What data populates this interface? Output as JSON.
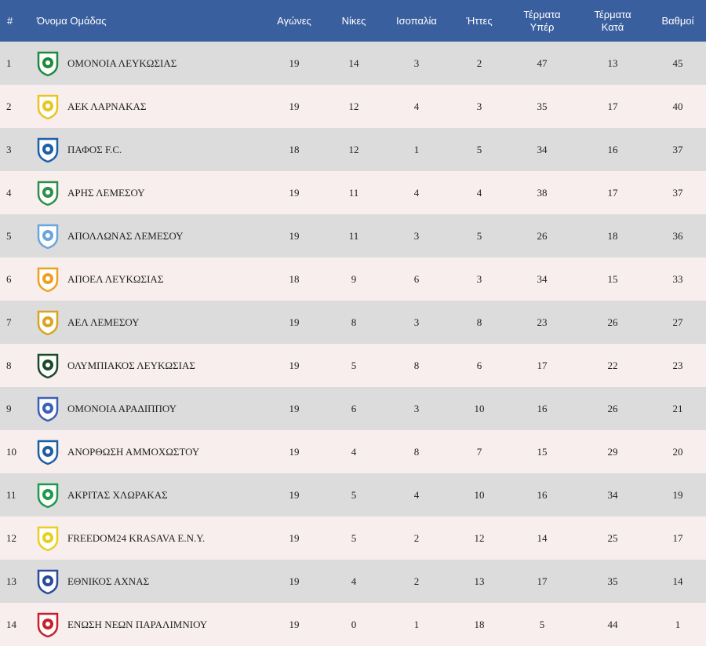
{
  "headers": {
    "rank": "#",
    "team": "Όνομα Ομάδας",
    "played": "Αγώνες",
    "wins": "Νίκες",
    "draws": "Ισοπαλία",
    "losses": "Ήττες",
    "goals_for_1": "Τέρματα",
    "goals_for_2": "Υπέρ",
    "goals_against_1": "Τέρματα",
    "goals_against_2": "Κατά",
    "points": "Βαθμοί"
  },
  "rows": [
    {
      "rank": "1",
      "team": "ΟΜΟΝΟΙΑ ΛΕΥΚΩΣΙΑΣ",
      "logo": "omonoia-logo",
      "color": "#1e8a3c",
      "played": "19",
      "wins": "14",
      "draws": "3",
      "losses": "2",
      "gf": "47",
      "ga": "13",
      "pts": "45"
    },
    {
      "rank": "2",
      "team": "ΑΕΚ ΛΑΡΝΑΚΑΣ",
      "logo": "aek-logo",
      "color": "#e8c520",
      "played": "19",
      "wins": "12",
      "draws": "4",
      "losses": "3",
      "gf": "35",
      "ga": "17",
      "pts": "40"
    },
    {
      "rank": "3",
      "team": "ΠΑΦΟΣ F.C.",
      "logo": "pafos-logo",
      "color": "#1d5fa8",
      "played": "18",
      "wins": "12",
      "draws": "1",
      "losses": "5",
      "gf": "34",
      "ga": "16",
      "pts": "37"
    },
    {
      "rank": "4",
      "team": "ΑΡΗΣ ΛΕΜΕΣΟΥ",
      "logo": "aris-logo",
      "color": "#2f8f4a",
      "played": "19",
      "wins": "11",
      "draws": "4",
      "losses": "4",
      "gf": "38",
      "ga": "17",
      "pts": "37"
    },
    {
      "rank": "5",
      "team": "ΑΠΟΛΛΩΝΑΣ ΛΕΜΕΣΟΥ",
      "logo": "apollon-logo",
      "color": "#6aa6dc",
      "played": "19",
      "wins": "11",
      "draws": "3",
      "losses": "5",
      "gf": "26",
      "ga": "18",
      "pts": "36"
    },
    {
      "rank": "6",
      "team": "ΑΠΟΕΛ ΛΕΥΚΩΣΙΑΣ",
      "logo": "apoel-logo",
      "color": "#f0a020",
      "played": "18",
      "wins": "9",
      "draws": "6",
      "losses": "3",
      "gf": "34",
      "ga": "15",
      "pts": "33"
    },
    {
      "rank": "7",
      "team": "ΑΕΛ ΛΕΜΕΣΟΥ",
      "logo": "ael-logo",
      "color": "#d9a520",
      "played": "19",
      "wins": "8",
      "draws": "3",
      "losses": "8",
      "gf": "23",
      "ga": "26",
      "pts": "27"
    },
    {
      "rank": "8",
      "team": "ΟΛΥΜΠΙΑΚΟΣ ΛΕΥΚΩΣΙΑΣ",
      "logo": "olympiakos-logo",
      "color": "#1a4a2a",
      "played": "19",
      "wins": "5",
      "draws": "8",
      "losses": "6",
      "gf": "17",
      "ga": "22",
      "pts": "23"
    },
    {
      "rank": "9",
      "team": "ΟΜΟΝΟΙΑ ΑΡΑΔΙΠΠΟΥ",
      "logo": "omonoia-aradippou-logo",
      "color": "#3b5fb8",
      "played": "19",
      "wins": "6",
      "draws": "3",
      "losses": "10",
      "gf": "16",
      "ga": "26",
      "pts": "21"
    },
    {
      "rank": "10",
      "team": "ΑΝΟΡΘΩΣΗ ΑΜΜΟΧΩΣΤΟΥ",
      "logo": "anorthosis-logo",
      "color": "#1f5fa0",
      "played": "19",
      "wins": "4",
      "draws": "8",
      "losses": "7",
      "gf": "15",
      "ga": "29",
      "pts": "20"
    },
    {
      "rank": "11",
      "team": "ΑΚΡΙΤΑΣ ΧΛΩΡΑΚΑΣ",
      "logo": "akritas-logo",
      "color": "#1e9a4a",
      "played": "19",
      "wins": "5",
      "draws": "4",
      "losses": "10",
      "gf": "16",
      "ga": "34",
      "pts": "19"
    },
    {
      "rank": "12",
      "team": "FREEDOM24 KRASAVA E.N.Y.",
      "logo": "krasava-logo",
      "color": "#e8d020",
      "played": "19",
      "wins": "5",
      "draws": "2",
      "losses": "12",
      "gf": "14",
      "ga": "25",
      "pts": "17"
    },
    {
      "rank": "13",
      "team": "ΕΘΝΙΚΟΣ ΑΧΝΑΣ",
      "logo": "ethnikos-logo",
      "color": "#2a4a9a",
      "played": "19",
      "wins": "4",
      "draws": "2",
      "losses": "13",
      "gf": "17",
      "ga": "35",
      "pts": "14"
    },
    {
      "rank": "14",
      "team": "ΕΝΩΣΗ ΝΕΩΝ ΠΑΡΑΛΙΜΝΙΟΥ",
      "logo": "enp-logo",
      "color": "#c8202a",
      "played": "19",
      "wins": "0",
      "draws": "1",
      "losses": "18",
      "gf": "5",
      "ga": "44",
      "pts": "1"
    }
  ]
}
